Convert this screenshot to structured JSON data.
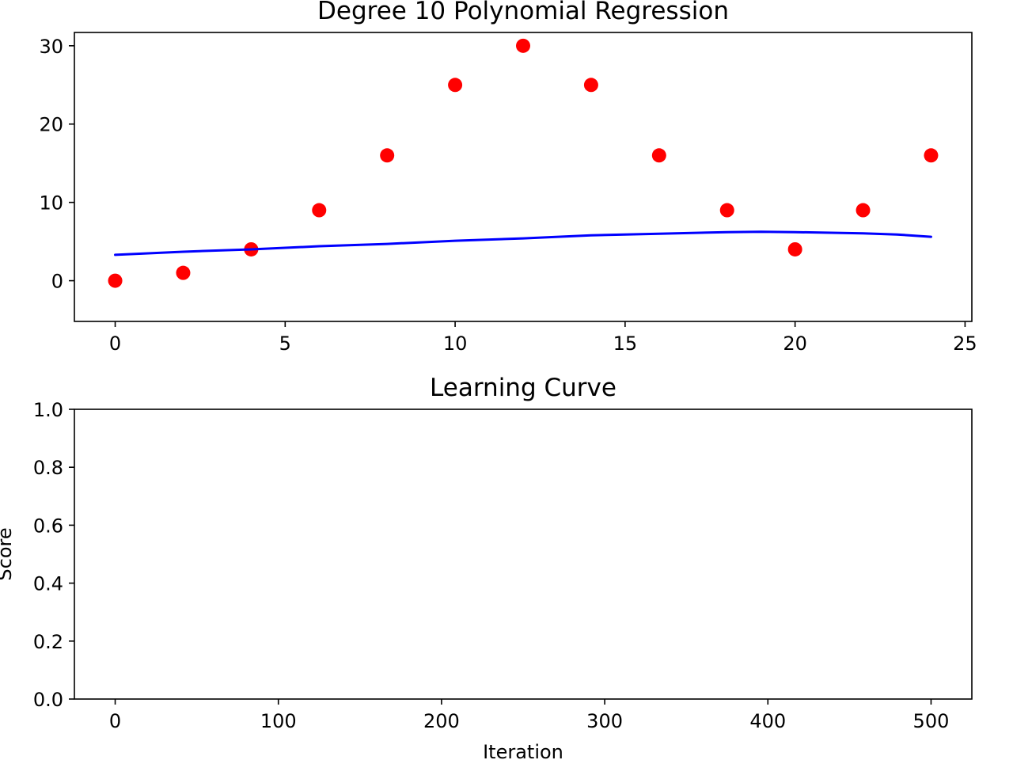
{
  "chart_data": [
    {
      "type": "scatter",
      "title": "Degree 10 Polynomial Regression",
      "xlabel": "",
      "ylabel": "",
      "xlim": [
        -1.2,
        25.2
      ],
      "ylim": [
        -5.2,
        31.7
      ],
      "xticks": [
        0,
        5,
        10,
        15,
        20,
        25
      ],
      "yticks": [
        0,
        10,
        20,
        30
      ],
      "grid": false,
      "series": [
        {
          "kind": "scatter",
          "color": "#ff0000",
          "x": [
            0,
            2,
            4,
            6,
            8,
            10,
            12,
            14,
            16,
            18,
            20,
            22,
            24
          ],
          "y": [
            0,
            1,
            4,
            9,
            16,
            25,
            30,
            25,
            16,
            9,
            4,
            9,
            16
          ]
        },
        {
          "kind": "line",
          "color": "#0000ff",
          "x": [
            0,
            2,
            4,
            6,
            8,
            10,
            12,
            14,
            16,
            18,
            19,
            20,
            22,
            23,
            24
          ],
          "y": [
            3.3,
            3.7,
            4.0,
            4.4,
            4.7,
            5.1,
            5.4,
            5.8,
            6.0,
            6.2,
            6.25,
            6.2,
            6.05,
            5.9,
            5.6
          ]
        }
      ]
    },
    {
      "type": "line",
      "title": "Learning Curve",
      "xlabel": "Iteration",
      "ylabel": "Score",
      "xlim": [
        -25,
        525
      ],
      "ylim": [
        0.0,
        1.0
      ],
      "xticks": [
        0,
        100,
        200,
        300,
        400,
        500
      ],
      "yticks": [
        "0.0",
        "0.2",
        "0.4",
        "0.6",
        "0.8",
        "1.0"
      ],
      "grid": false,
      "series": []
    }
  ]
}
